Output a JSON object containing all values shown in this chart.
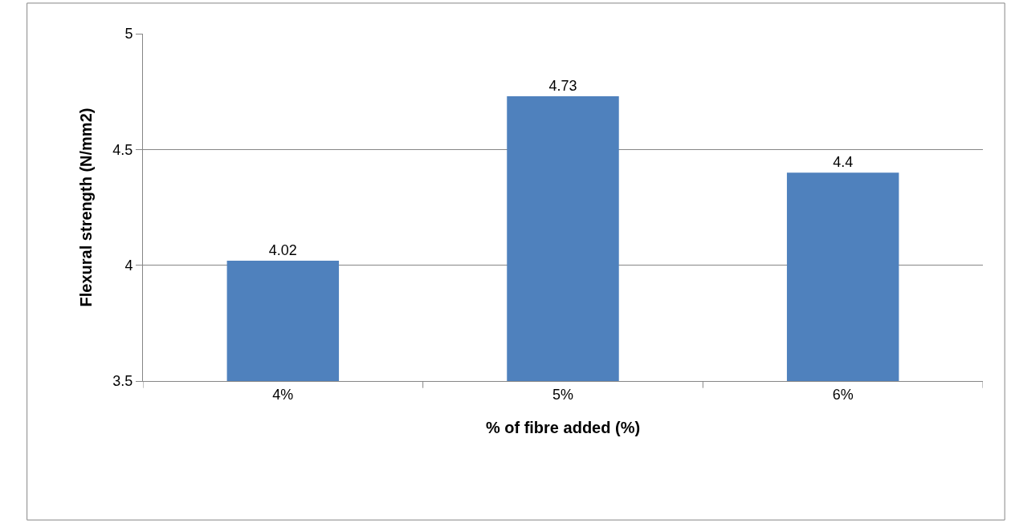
{
  "chart_data": {
    "type": "bar",
    "xlabel": "% of fibre added (%)",
    "ylabel": "Flexural strength (N/mm2)",
    "categories": [
      "4%",
      "5%",
      "6%"
    ],
    "values": [
      4.02,
      4.73,
      4.4
    ],
    "color": "#4f81bd",
    "ylim": [
      3.5,
      5
    ],
    "yticks": [
      3.5,
      4,
      4.5,
      5
    ],
    "grid": "y",
    "data_labels": true,
    "legend": false
  }
}
